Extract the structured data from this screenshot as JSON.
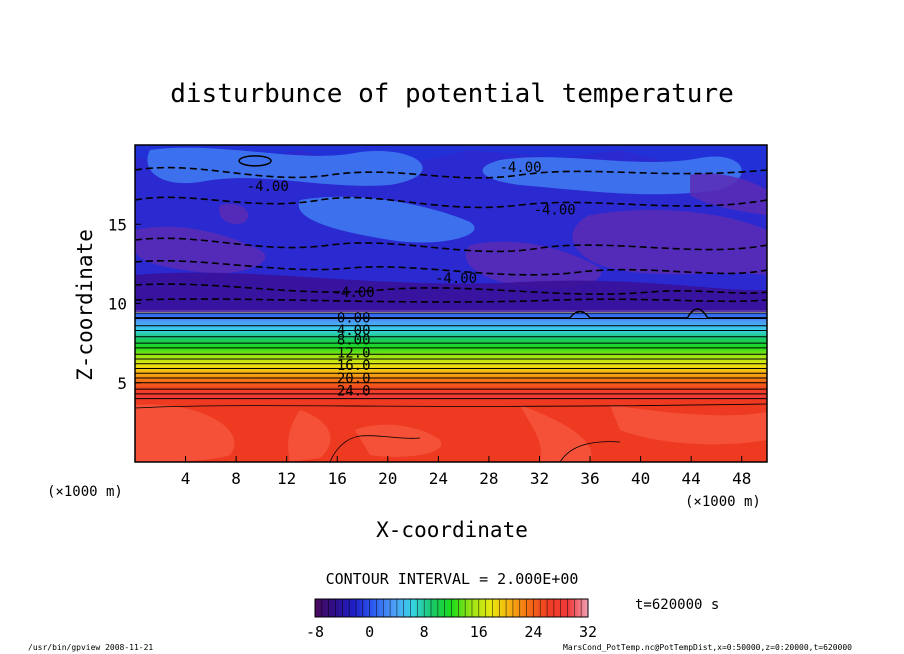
{
  "chart_data": {
    "type": "heatmap",
    "title": "disturbunce of potential temperature",
    "xlabel": "X-coordinate",
    "ylabel": "Z-coordinate",
    "x_unit_left": "(×1000 m)",
    "x_unit_right": "(×1000 m)",
    "xlim": [
      0,
      50
    ],
    "ylim": [
      0,
      20
    ],
    "x_ticks": [
      4,
      8,
      12,
      16,
      20,
      24,
      28,
      32,
      36,
      40,
      44,
      48
    ],
    "y_ticks": [
      5,
      10,
      15
    ],
    "contour_interval_text": "CONTOUR INTERVAL = 2.000E+00",
    "contour_labels": [
      {
        "text": "-4.00",
        "x": 10.5,
        "z": 17.1
      },
      {
        "text": "-4.00",
        "x": 30.5,
        "z": 18.3
      },
      {
        "text": "-4.00",
        "x": 33.2,
        "z": 15.6
      },
      {
        "text": "-4.00",
        "x": 25.4,
        "z": 11.3
      },
      {
        "text": "-4.00",
        "x": 17.3,
        "z": 10.4
      },
      {
        "text": "0.00",
        "x": 17.3,
        "z": 8.8
      },
      {
        "text": "4.00",
        "x": 17.3,
        "z": 8.0
      },
      {
        "text": "8.00",
        "x": 17.3,
        "z": 7.4
      },
      {
        "text": "12.0",
        "x": 17.3,
        "z": 6.6
      },
      {
        "text": "16.0",
        "x": 17.3,
        "z": 5.8
      },
      {
        "text": "20.0",
        "x": 17.3,
        "z": 5.0
      },
      {
        "text": "24.0",
        "x": 17.3,
        "z": 4.2
      }
    ],
    "zero_contour_z": 9.1,
    "zero_contour_bumps": [
      {
        "x": 35.2,
        "z": 9.4
      },
      {
        "x": 44.5,
        "z": 9.7
      }
    ],
    "level_boundaries_z": [
      9.4,
      9.05,
      8.6,
      8.3,
      7.9,
      7.5,
      7.2,
      6.8,
      6.5,
      6.2,
      5.9,
      5.6,
      5.3,
      5.0,
      4.6,
      4.3,
      4.0
    ],
    "colorbar": {
      "ticks": [
        -8,
        0,
        8,
        16,
        24,
        32
      ],
      "tick_labels": [
        "-8",
        "0",
        "8",
        "16",
        "24",
        "32"
      ],
      "min": -8,
      "max": 32,
      "colors_low_to_high": [
        "#4a0a5c",
        "#2f0f8a",
        "#1f1fc8",
        "#2d5cf0",
        "#4d9cf7",
        "#38d2e6",
        "#19c96a",
        "#1cdb1c",
        "#9ae416",
        "#e8e80f",
        "#f7b010",
        "#f26a16",
        "#f03c24",
        "#ef3b3b",
        "#f2a0b4"
      ]
    },
    "field_colors": {
      "upper_dark": "#3a0f96",
      "upper_blue": "#2033d8",
      "upper_light": "#3f7cf2",
      "upper_purple": "#5a2bb4",
      "lower_red": "#ef3a22",
      "lower_red_light": "#f4543b"
    },
    "time_text": "t=620000 s"
  },
  "footer": {
    "left": "/usr/bin/gpview   2008-11-21",
    "right": "MarsCond_PotTemp.nc@PotTempDist,x=0:50000,z=0:20000,t=620000"
  }
}
